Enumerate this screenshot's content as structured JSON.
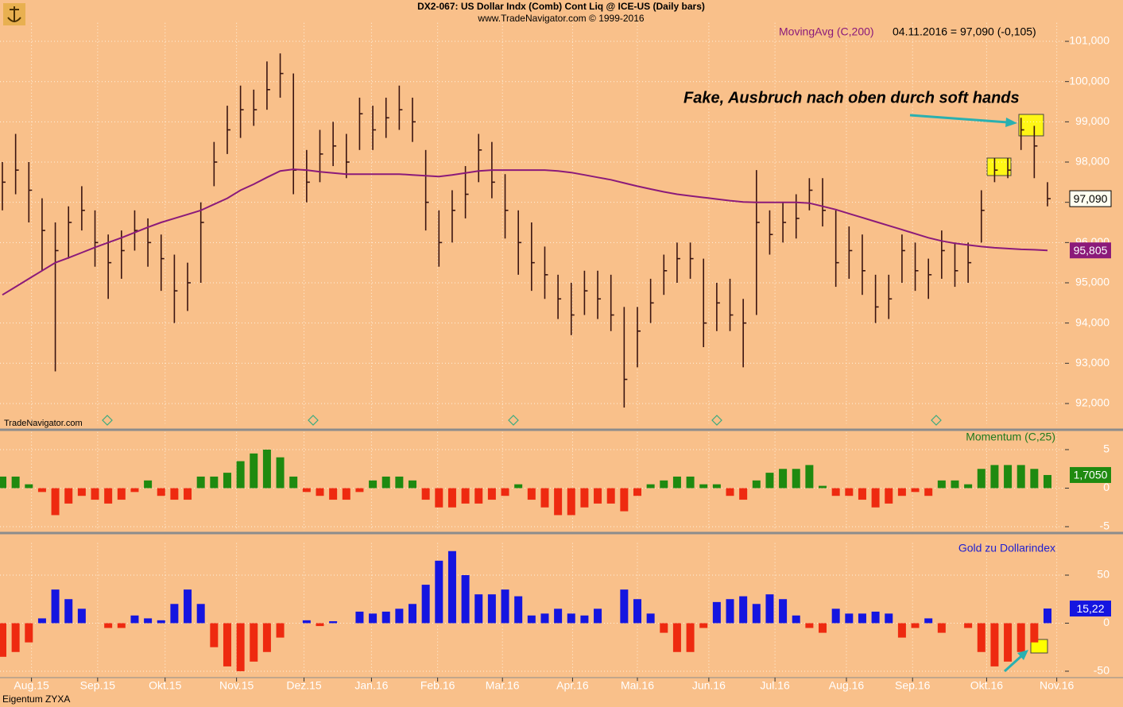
{
  "header": {
    "title": "DX2-067:  US Dollar Indx (Comb) Cont Liq @ ICE-US  (Daily bars)",
    "subtitle": "www.TradeNavigator.com © 1999-2016"
  },
  "footer": {
    "source": "TradeNavigator.com",
    "owner": "Eigentum ZYXA"
  },
  "chart_data": [
    {
      "type": "ohlc",
      "color": "#3a1410",
      "annotation": "Fake, Ausbruch nach oben durch soft hands",
      "legend_info": "04.11.2016 = 97,090 (-0,105)",
      "high": [
        98.0,
        98.7,
        98.0,
        97.1,
        96.5,
        96.9,
        97.4,
        96.8,
        96.2,
        96.3,
        96.8,
        96.6,
        96.2,
        95.7,
        95.5,
        97.0,
        98.5,
        99.4,
        99.9,
        99.8,
        100.5,
        100.7,
        100.2,
        98.3,
        98.8,
        99.0,
        98.7,
        99.6,
        99.4,
        99.6,
        99.9,
        99.6,
        98.3,
        96.8,
        97.3,
        97.9,
        98.7,
        98.5,
        97.7,
        96.8,
        96.5,
        95.9,
        95.2,
        95.0,
        95.3,
        95.3,
        95.2,
        94.4,
        94.4,
        95.1,
        95.7,
        96.0,
        96.0,
        95.6,
        95.0,
        95.1,
        94.6,
        97.8,
        96.8,
        97.0,
        97.2,
        97.6,
        97.6,
        96.8,
        96.4,
        96.2,
        95.2,
        95.2,
        96.2,
        96.0,
        95.6,
        96.3,
        96.0,
        96.0,
        97.3,
        98.1,
        98.1,
        99.1,
        98.9,
        97.5
      ],
      "low": [
        96.8,
        97.2,
        96.5,
        95.3,
        92.8,
        95.6,
        96.3,
        95.4,
        94.6,
        95.1,
        95.8,
        95.4,
        94.8,
        94.0,
        94.3,
        95.0,
        97.4,
        98.2,
        98.6,
        98.9,
        99.3,
        99.6,
        97.2,
        97.0,
        97.5,
        97.9,
        97.6,
        98.3,
        98.3,
        98.6,
        98.8,
        98.5,
        96.3,
        95.4,
        96.0,
        96.6,
        97.5,
        97.1,
        96.1,
        95.2,
        94.8,
        94.6,
        94.1,
        93.7,
        94.2,
        94.1,
        93.8,
        91.9,
        92.9,
        94.0,
        94.7,
        95.0,
        95.1,
        93.4,
        93.8,
        93.8,
        92.9,
        94.2,
        95.7,
        96.0,
        96.1,
        96.8,
        96.4,
        94.9,
        95.1,
        94.7,
        94.0,
        94.1,
        95.0,
        94.8,
        94.6,
        95.1,
        94.9,
        95.0,
        96.0,
        97.5,
        97.6,
        98.3,
        97.6,
        96.9
      ],
      "close": [
        97.5,
        97.8,
        97.3,
        96.3,
        95.8,
        96.5,
        96.8,
        96.0,
        95.5,
        95.8,
        96.3,
        96.0,
        95.6,
        94.8,
        95.0,
        96.5,
        98.0,
        98.8,
        99.3,
        99.3,
        99.8,
        100.2,
        97.8,
        97.5,
        98.2,
        98.4,
        98.0,
        99.2,
        98.8,
        99.1,
        99.3,
        99.0,
        97.0,
        96.0,
        96.8,
        97.2,
        98.3,
        97.5,
        96.8,
        96.0,
        95.5,
        95.2,
        94.6,
        94.2,
        94.8,
        94.6,
        94.2,
        92.6,
        93.8,
        94.5,
        95.3,
        95.6,
        95.6,
        94.0,
        94.5,
        94.2,
        94.0,
        96.5,
        96.2,
        96.5,
        96.6,
        97.3,
        96.8,
        95.5,
        95.8,
        95.3,
        94.4,
        94.6,
        95.8,
        95.3,
        95.2,
        95.8,
        95.3,
        95.5,
        96.8,
        97.8,
        97.8,
        98.8,
        98.4,
        97.09
      ],
      "last_label": "97,090",
      "overlay": {
        "name": "MovingAvg (C,200)",
        "color": "#8b1a7a",
        "last_label": "95,805",
        "values": [
          94.7,
          94.9,
          95.1,
          95.3,
          95.5,
          95.62,
          95.75,
          95.88,
          96.0,
          96.12,
          96.25,
          96.38,
          96.5,
          96.6,
          96.7,
          96.8,
          96.95,
          97.1,
          97.3,
          97.45,
          97.62,
          97.78,
          97.82,
          97.8,
          97.76,
          97.73,
          97.7,
          97.7,
          97.7,
          97.7,
          97.7,
          97.68,
          97.66,
          97.64,
          97.68,
          97.73,
          97.78,
          97.8,
          97.8,
          97.8,
          97.8,
          97.8,
          97.78,
          97.74,
          97.68,
          97.62,
          97.56,
          97.48,
          97.4,
          97.33,
          97.26,
          97.2,
          97.16,
          97.12,
          97.08,
          97.04,
          97.01,
          97.0,
          97.0,
          97.0,
          97.0,
          96.98,
          96.9,
          96.82,
          96.72,
          96.62,
          96.52,
          96.42,
          96.32,
          96.22,
          96.12,
          96.04,
          95.98,
          95.94,
          95.9,
          95.87,
          95.85,
          95.83,
          95.82,
          95.805
        ]
      },
      "xlim": [
        0,
        79
      ],
      "ylim": [
        91.5,
        101.5
      ],
      "grid": true,
      "yticks": [
        {
          "value": 92,
          "label": "92,000"
        },
        {
          "value": 93,
          "label": "93,000"
        },
        {
          "value": 94,
          "label": "94,000"
        },
        {
          "value": 95,
          "label": "95,000"
        },
        {
          "value": 96,
          "label": "96,000"
        },
        {
          "value": 97,
          "label": "97,000"
        },
        {
          "value": 98,
          "label": "98,000"
        },
        {
          "value": 99,
          "label": "99,000"
        },
        {
          "value": 100,
          "label": "100,000"
        },
        {
          "value": 101,
          "label": "101,000"
        }
      ]
    },
    {
      "type": "histogram",
      "name": "Momentum (C,25)",
      "name_color": "#1e7a1e",
      "pos_color": "#1f8a10",
      "neg_color": "#ee2a10",
      "last_label": "1,7050",
      "values": [
        1.5,
        1.5,
        0.5,
        -0.5,
        -3.5,
        -2,
        -1,
        -1.5,
        -2,
        -1.5,
        -0.5,
        1,
        -1,
        -1.5,
        -1.5,
        1.5,
        1.5,
        2,
        3.5,
        4.5,
        5,
        4,
        1.5,
        -0.5,
        -1,
        -1.5,
        -1.5,
        -0.5,
        1,
        1.5,
        1.5,
        1,
        -1.5,
        -2.5,
        -2.5,
        -2,
        -2,
        -1.5,
        -1,
        0.5,
        -1.5,
        -2.5,
        -3.5,
        -3.5,
        -2.5,
        -2,
        -2,
        -3,
        -1,
        0.5,
        1,
        1.5,
        1.5,
        0.5,
        0.5,
        -1,
        -1.5,
        1,
        2,
        2.5,
        2.5,
        3,
        0.3,
        -1,
        -1,
        -1.5,
        -2.5,
        -2,
        -1,
        -0.5,
        -1,
        1,
        1,
        0.5,
        2.5,
        3,
        3,
        3,
        2.5,
        1.705
      ],
      "xlim": [
        0,
        79
      ],
      "ylim": [
        -5.5,
        7.5
      ],
      "yticks": [
        5,
        0,
        -5
      ]
    },
    {
      "type": "histogram",
      "name": "Gold zu Dollarindex",
      "name_color": "#2020d0",
      "pos_color": "#1515e0",
      "neg_color": "#ee2a10",
      "last_label": "15,22",
      "values": [
        -35,
        -30,
        -20,
        5,
        35,
        25,
        15,
        0,
        -5,
        -5,
        8,
        5,
        3,
        20,
        35,
        20,
        -25,
        -45,
        -50,
        -40,
        -30,
        -15,
        0,
        3,
        -3,
        2,
        0,
        12,
        10,
        12,
        15,
        20,
        40,
        65,
        75,
        50,
        30,
        30,
        35,
        28,
        8,
        10,
        15,
        10,
        8,
        15,
        0,
        35,
        25,
        10,
        -10,
        -30,
        -30,
        -5,
        22,
        25,
        28,
        20,
        30,
        25,
        8,
        -5,
        -10,
        15,
        10,
        10,
        12,
        10,
        -15,
        -5,
        5,
        -10,
        0,
        -5,
        -30,
        -45,
        -40,
        -30,
        -20,
        15.22
      ],
      "xlim": [
        0,
        79
      ],
      "ylim": [
        -55,
        85
      ],
      "yticks": [
        50,
        0,
        -50
      ],
      "xticks": [
        {
          "value": 2.2,
          "label": "Aug.15"
        },
        {
          "value": 7.2,
          "label": "Sep.15"
        },
        {
          "value": 12.3,
          "label": "Okt.15"
        },
        {
          "value": 17.7,
          "label": "Nov.15"
        },
        {
          "value": 22.8,
          "label": "Dez.15"
        },
        {
          "value": 27.9,
          "label": "Jan.16"
        },
        {
          "value": 32.9,
          "label": "Feb.16"
        },
        {
          "value": 37.8,
          "label": "Mar.16"
        },
        {
          "value": 43.1,
          "label": "Apr.16"
        },
        {
          "value": 48.0,
          "label": "Mai.16"
        },
        {
          "value": 53.4,
          "label": "Jun.16"
        },
        {
          "value": 58.4,
          "label": "Jul.16"
        },
        {
          "value": 63.8,
          "label": "Aug.16"
        },
        {
          "value": 68.8,
          "label": "Sep.16"
        },
        {
          "value": 74.4,
          "label": "Okt.16"
        },
        {
          "value": 79.7,
          "label": "Nov.16"
        }
      ]
    }
  ]
}
